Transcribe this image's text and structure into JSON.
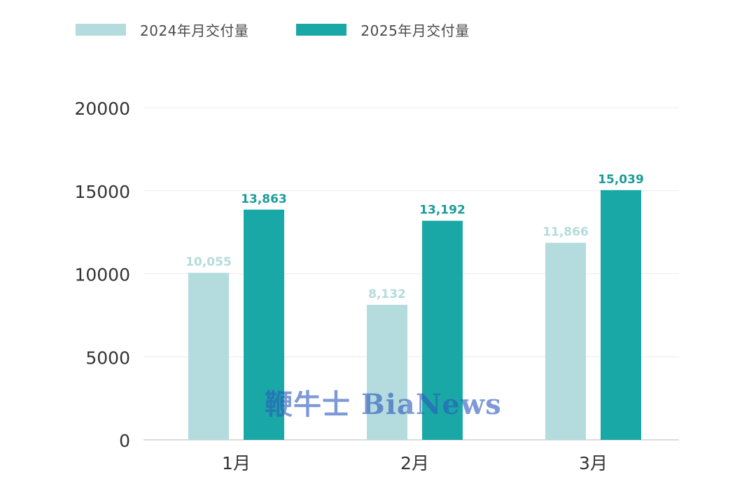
{
  "legend": [
    {
      "label": "2024年月交付量",
      "color": "#b4dbdd"
    },
    {
      "label": "2025年月交付量",
      "color": "#1aa8a6"
    }
  ],
  "watermark": "鞭牛士 BiaNews",
  "chart_data": {
    "type": "bar",
    "categories": [
      "1月",
      "2月",
      "3月"
    ],
    "series": [
      {
        "name": "2024年月交付量",
        "values": [
          10055,
          8132,
          11866
        ],
        "labels": [
          "10,055",
          "8,132",
          "11,866"
        ],
        "color": "#b4dbdd",
        "label_color": "#b4dbdd"
      },
      {
        "name": "2025年月交付量",
        "values": [
          13863,
          13192,
          15039
        ],
        "labels": [
          "13,863",
          "13,192",
          "15,039"
        ],
        "color": "#1aa8a6",
        "label_color": "#1a9d9a"
      }
    ],
    "yticks": [
      "0",
      "5000",
      "10000",
      "15000",
      "20000"
    ],
    "ylim": [
      0,
      20000
    ],
    "grid": true,
    "legend_position": "top-left"
  }
}
